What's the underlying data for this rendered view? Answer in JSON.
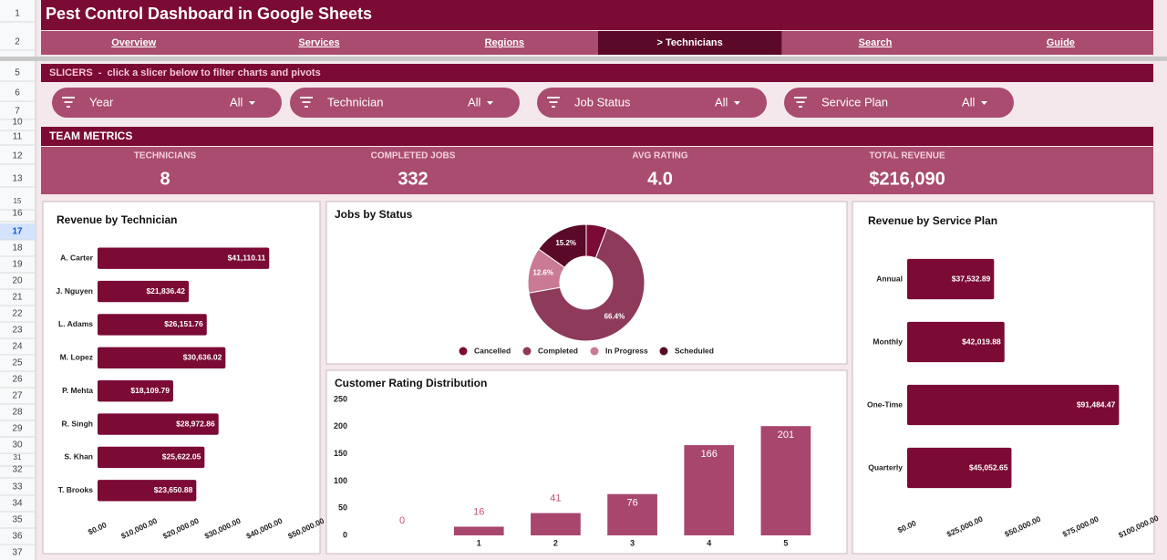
{
  "row_numbers": [
    1,
    2,
    5,
    6,
    7,
    10,
    11,
    12,
    13,
    15,
    16,
    17,
    18,
    19,
    20,
    21,
    22,
    23,
    24,
    25,
    26,
    27,
    28,
    29,
    30,
    31,
    32,
    33,
    34,
    35,
    36,
    37
  ],
  "header": {
    "title": "Pest Control Dashboard in Google Sheets"
  },
  "nav": [
    "Overview",
    "Services",
    "Regions",
    "> Technicians",
    "Search",
    "Guide"
  ],
  "slicers_bar": "SLICERS  -  click a slicer below to filter charts and pivots",
  "slicers": [
    {
      "name": "Year",
      "value": "All"
    },
    {
      "name": "Technician",
      "value": "All"
    },
    {
      "name": "Job Status",
      "value": "All"
    },
    {
      "name": "Service Plan",
      "value": "All"
    }
  ],
  "metrics": {
    "title": "TEAM METRICS",
    "items": [
      {
        "label": "TECHNICIANS",
        "value": "8"
      },
      {
        "label": "COMPLETED JOBS",
        "value": "332"
      },
      {
        "label": "AVG RATING",
        "value": "4.0"
      },
      {
        "label": "TOTAL REVENUE",
        "value": "$216,090"
      }
    ]
  },
  "chart_data": [
    {
      "type": "bar",
      "horizontal": true,
      "title": "Revenue by Technician",
      "color": "#7b0a35",
      "categories": [
        "A. Carter",
        "J. Nguyen",
        "L. Adams",
        "M. Lopez",
        "P. Mehta",
        "R. Singh",
        "S. Khan",
        "T. Brooks"
      ],
      "values": [
        41110.11,
        21836.42,
        26151.76,
        30636.02,
        18109.79,
        28972.86,
        25622.05,
        23650.88
      ],
      "value_labels": [
        "$41,110.11",
        "$21,836.42",
        "$26,151.76",
        "$30,636.02",
        "$18,109.79",
        "$28,972.86",
        "$25,622.05",
        "$23,650.88"
      ],
      "xlim": [
        0,
        50000
      ],
      "xticks": [
        {
          "value": 0,
          "label": "$0.00"
        },
        {
          "value": 10000,
          "label": "$10,000.00"
        },
        {
          "value": 20000,
          "label": "$20,000.00"
        },
        {
          "value": 30000,
          "label": "$30,000.00"
        },
        {
          "value": 40000,
          "label": "$40,000.00"
        },
        {
          "value": 50000,
          "label": "$50,000.00"
        }
      ]
    },
    {
      "type": "pie",
      "donut": true,
      "title": "Jobs by Status",
      "categories": [
        "Cancelled",
        "Completed",
        "In Progress",
        "Scheduled"
      ],
      "values": [
        5.8,
        66.4,
        12.6,
        15.2
      ],
      "value_labels": [
        null,
        "66.4%",
        "12.6%",
        "15.2%"
      ],
      "colors": [
        "#7b0a35",
        "#8e3a5b",
        "#c97a95",
        "#5a0a28"
      ]
    },
    {
      "type": "bar",
      "title": "Customer Rating Distribution",
      "color": "#a8466e",
      "categories": [
        null,
        "1",
        "2",
        "3",
        "4",
        "5"
      ],
      "values": [
        0,
        16,
        41,
        76,
        166,
        201
      ],
      "ylim": [
        0,
        250
      ],
      "yticks": [
        0,
        50,
        100,
        150,
        200,
        250
      ]
    },
    {
      "type": "bar",
      "horizontal": true,
      "title": "Revenue by Service Plan",
      "color": "#7b0a35",
      "categories": [
        "Annual",
        "Monthly",
        "One-Time",
        "Quarterly"
      ],
      "values": [
        37532.89,
        42019.88,
        91484.47,
        45052.65
      ],
      "value_labels": [
        "$37,532.89",
        "$42,019.88",
        "$91,484.47",
        "$45,052.65"
      ],
      "xlim": [
        0,
        100000
      ],
      "xticks": [
        {
          "value": 0,
          "label": "$0.00"
        },
        {
          "value": 25000,
          "label": "$25,000.00"
        },
        {
          "value": 50000,
          "label": "$50,000.00"
        },
        {
          "value": 75000,
          "label": "$75,000.00"
        },
        {
          "value": 100000,
          "label": "$100,000.00"
        }
      ]
    }
  ]
}
